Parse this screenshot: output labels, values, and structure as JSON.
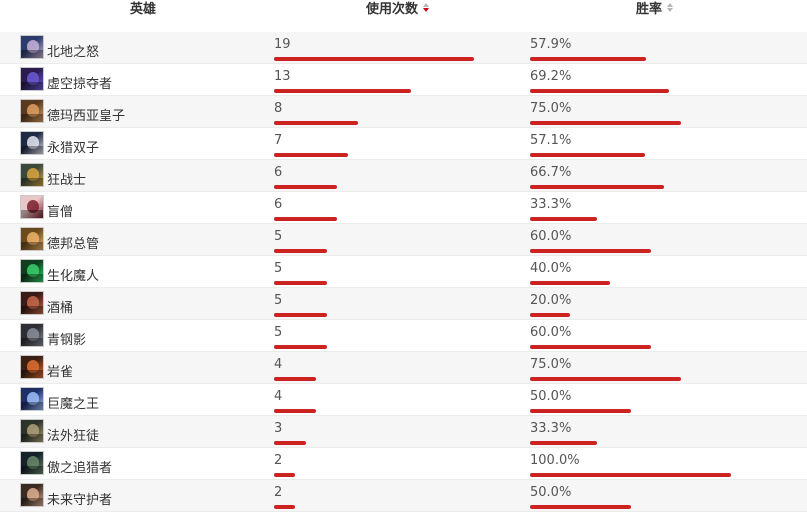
{
  "header": {
    "hero_label": "英雄",
    "uses_label": "使用次数",
    "winrate_label": "胜率"
  },
  "colors": {
    "bar": "#cc2222",
    "sort_active": "#d0021b",
    "sort_inactive": "#b5b5b5"
  },
  "scale": {
    "uses_max": 19,
    "winrate_max": 100
  },
  "rows": [
    {
      "name": "北地之怒",
      "uses": 19,
      "uses_text": "19",
      "winrate": 57.9,
      "winrate_text": "57.9%",
      "avatar": [
        "#2b3b6b",
        "#c9b3d9"
      ]
    },
    {
      "name": "虚空掠夺者",
      "uses": 13,
      "uses_text": "13",
      "winrate": 69.2,
      "winrate_text": "69.2%",
      "avatar": [
        "#2a1d4d",
        "#6b5bd6"
      ]
    },
    {
      "name": "德玛西亚皇子",
      "uses": 8,
      "uses_text": "8",
      "winrate": 75.0,
      "winrate_text": "75.0%",
      "avatar": [
        "#5a3a1e",
        "#e0a060"
      ]
    },
    {
      "name": "永猎双子",
      "uses": 7,
      "uses_text": "7",
      "winrate": 57.1,
      "winrate_text": "57.1%",
      "avatar": [
        "#1d2a44",
        "#e6e6f0"
      ]
    },
    {
      "name": "狂战士",
      "uses": 6,
      "uses_text": "6",
      "winrate": 66.7,
      "winrate_text": "66.7%",
      "avatar": [
        "#3a4a3a",
        "#d9a441"
      ]
    },
    {
      "name": "盲僧",
      "uses": 6,
      "uses_text": "6",
      "winrate": 33.3,
      "winrate_text": "33.3%",
      "avatar": [
        "#e9c7c7",
        "#7a1d2d"
      ]
    },
    {
      "name": "德邦总管",
      "uses": 5,
      "uses_text": "5",
      "winrate": 60.0,
      "winrate_text": "60.0%",
      "avatar": [
        "#6b4a1e",
        "#f0b36a"
      ]
    },
    {
      "name": "生化魔人",
      "uses": 5,
      "uses_text": "5",
      "winrate": 40.0,
      "winrate_text": "40.0%",
      "avatar": [
        "#0f3d1d",
        "#39d26b"
      ]
    },
    {
      "name": "酒桶",
      "uses": 5,
      "uses_text": "5",
      "winrate": 20.0,
      "winrate_text": "20.0%",
      "avatar": [
        "#3a1a14",
        "#c86a4a"
      ]
    },
    {
      "name": "青钢影",
      "uses": 5,
      "uses_text": "5",
      "winrate": 60.0,
      "winrate_text": "60.0%",
      "avatar": [
        "#2e2e34",
        "#8a8f9a"
      ]
    },
    {
      "name": "岩雀",
      "uses": 4,
      "uses_text": "4",
      "winrate": 75.0,
      "winrate_text": "75.0%",
      "avatar": [
        "#3b1f12",
        "#e07030"
      ]
    },
    {
      "name": "巨魔之王",
      "uses": 4,
      "uses_text": "4",
      "winrate": 50.0,
      "winrate_text": "50.0%",
      "avatar": [
        "#1e2e66",
        "#9fc0ff"
      ]
    },
    {
      "name": "法外狂徒",
      "uses": 3,
      "uses_text": "3",
      "winrate": 33.3,
      "winrate_text": "33.3%",
      "avatar": [
        "#2c3328",
        "#b0a27a"
      ]
    },
    {
      "name": "傲之追猎者",
      "uses": 2,
      "uses_text": "2",
      "winrate": 100.0,
      "winrate_text": "100.0%",
      "avatar": [
        "#14222a",
        "#6a8a6a"
      ]
    },
    {
      "name": "未来守护者",
      "uses": 2,
      "uses_text": "2",
      "winrate": 50.0,
      "winrate_text": "50.0%",
      "avatar": [
        "#3a2a22",
        "#e0b090"
      ]
    }
  ]
}
